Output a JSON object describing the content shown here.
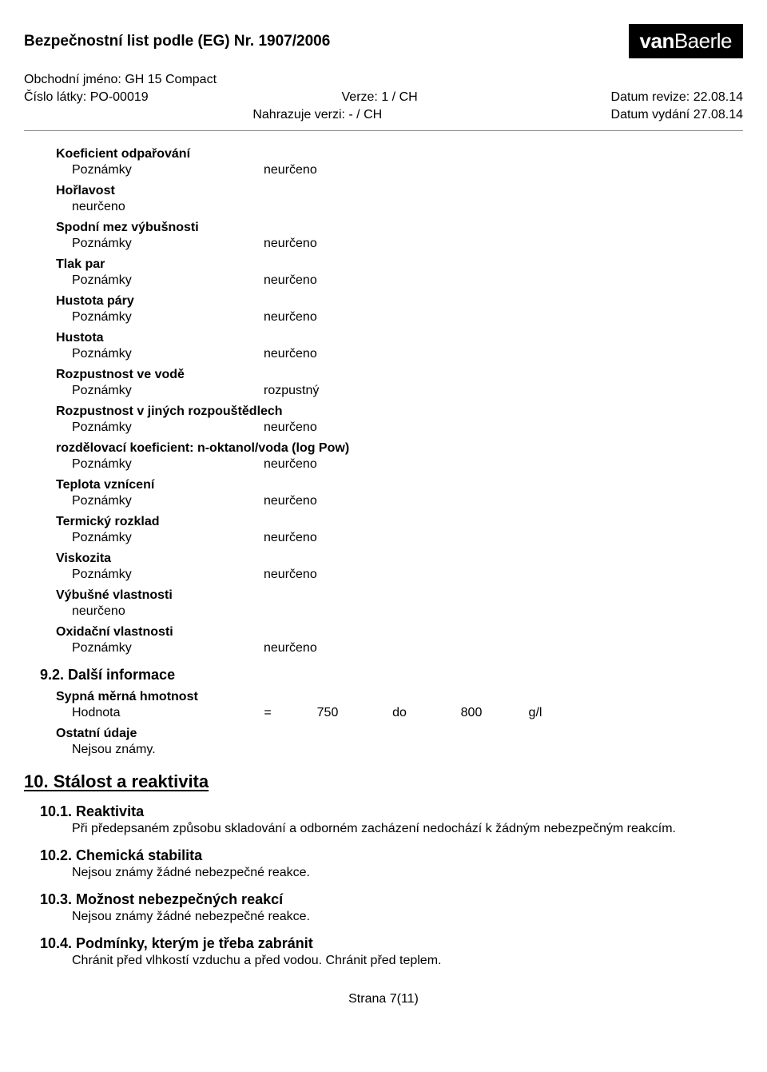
{
  "header": {
    "title": "Bezpečnostní list podle (EG) Nr. 1907/2006",
    "logo_bold": "van",
    "logo_light": "Baerle"
  },
  "meta": {
    "trade_name_label": "Obchodní jméno:",
    "trade_name": "GH 15 Compact",
    "substance_no_label": "Číslo látky:",
    "substance_no": "PO-00019",
    "version_label": "Verze:",
    "version": "1 / CH",
    "revise_label": "Datum revize:",
    "revise_date": "22.08.14",
    "replaces_label": "Nahrazuje verzi:",
    "replaces": "- / CH",
    "issue_label": "Datum vydání",
    "issue_date": "27.08.14"
  },
  "notes_label": "Poznámky",
  "not_determined": "neurčeno",
  "properties": [
    {
      "title": "Koeficient odpařování",
      "value": "neurčeno",
      "plain": false
    },
    {
      "title": "Hořlavost",
      "value": "neurčeno",
      "plain": true
    },
    {
      "title": "Spodní mez výbušnosti",
      "value": "neurčeno",
      "plain": false
    },
    {
      "title": "Tlak par",
      "value": "neurčeno",
      "plain": false
    },
    {
      "title": "Hustota páry",
      "value": "neurčeno",
      "plain": false
    },
    {
      "title": "Hustota",
      "value": "neurčeno",
      "plain": false
    },
    {
      "title": "Rozpustnost ve vodě",
      "value": "rozpustný",
      "plain": false
    },
    {
      "title": "Rozpustnost v jiných rozpouštědlech",
      "value": "neurčeno",
      "plain": false
    },
    {
      "title": "rozdělovací koeficient: n-oktanol/voda (log Pow)",
      "value": "neurčeno",
      "plain": false
    },
    {
      "title": "Teplota vznícení",
      "value": "neurčeno",
      "plain": false
    },
    {
      "title": "Termický rozklad",
      "value": "neurčeno",
      "plain": false
    },
    {
      "title": "Viskozita",
      "value": "neurčeno",
      "plain": false
    },
    {
      "title": "Výbušné vlastnosti",
      "value": "neurčeno",
      "plain": true
    },
    {
      "title": "Oxidační vlastnosti",
      "value": "neurčeno",
      "plain": false
    }
  ],
  "sec92": {
    "title": "9.2. Další informace",
    "bulk_density_title": "Sypná měrná hmotnost",
    "value_label": "Hodnota",
    "eq": "=",
    "v1": "750",
    "to": "do",
    "v2": "800",
    "unit": "g/l",
    "other_title": "Ostatní údaje",
    "other_text": "Nejsou známy."
  },
  "sec10": {
    "title": "10. Stálost a reaktivita",
    "s1_title": "10.1. Reaktivita",
    "s1_text": "Při předepsaném způsobu skladování a odborném zacházení nedochází k žádným nebezpečným reakcím.",
    "s2_title": "10.2. Chemická stabilita",
    "s2_text": "Nejsou známy žádné nebezpečné reakce.",
    "s3_title": "10.3. Možnost nebezpečných reakcí",
    "s3_text": "Nejsou známy žádné nebezpečné reakce.",
    "s4_title": "10.4. Podmínky, kterým je třeba zabránit",
    "s4_text": "Chránit před vlhkostí vzduchu a před vodou. Chránit před teplem."
  },
  "footer": {
    "page": "Strana 7(11)"
  }
}
